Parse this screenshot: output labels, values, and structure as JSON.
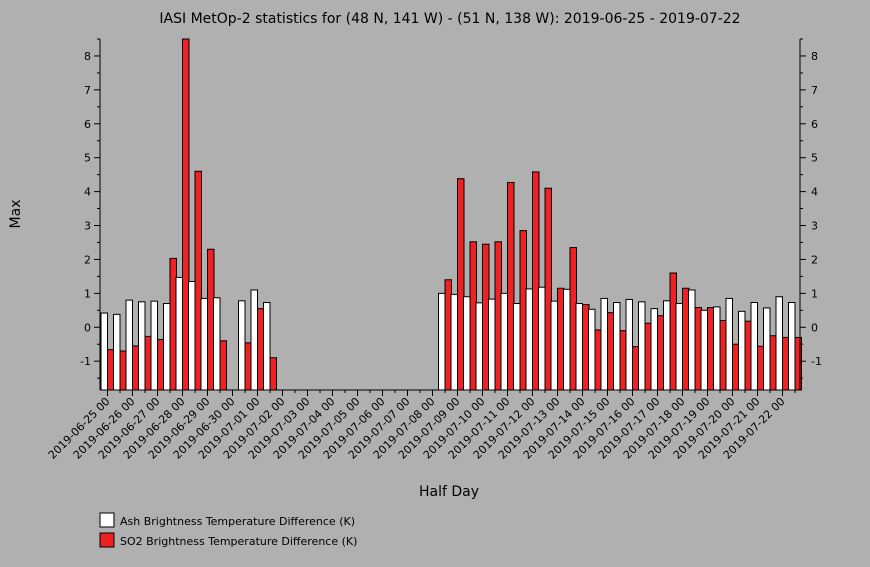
{
  "colors": {
    "background": "#b0b0b0",
    "ash_bar": "#ffffff",
    "so2_bar": "#ee2222",
    "axis": "#000000"
  },
  "chart_data": {
    "type": "bar",
    "title": "IASI MetOp-2 statistics for (48 N, 141 W) - (51 N, 138 W): 2019-06-25 - 2019-07-22",
    "xlabel": "Half Day",
    "ylabel": "Max",
    "ylim": [
      -1.85,
      8.5
    ],
    "yticks": [
      -1,
      0,
      1,
      2,
      3,
      4,
      5,
      6,
      7,
      8
    ],
    "grid": false,
    "legend_position": "bottom-left",
    "categories": [
      "2019-06-25 00",
      "2019-06-25 12",
      "2019-06-26 00",
      "2019-06-26 12",
      "2019-06-27 00",
      "2019-06-27 12",
      "2019-06-28 00",
      "2019-06-28 12",
      "2019-06-29 00",
      "2019-06-29 12",
      "2019-06-30 00",
      "2019-06-30 12",
      "2019-07-01 00",
      "2019-07-01 12",
      "2019-07-02 00",
      "2019-07-02 12",
      "2019-07-03 00",
      "2019-07-03 12",
      "2019-07-04 00",
      "2019-07-04 12",
      "2019-07-05 00",
      "2019-07-05 12",
      "2019-07-06 00",
      "2019-07-06 12",
      "2019-07-07 00",
      "2019-07-07 12",
      "2019-07-08 00",
      "2019-07-08 12",
      "2019-07-09 00",
      "2019-07-09 12",
      "2019-07-10 00",
      "2019-07-10 12",
      "2019-07-11 00",
      "2019-07-11 12",
      "2019-07-12 00",
      "2019-07-12 12",
      "2019-07-13 00",
      "2019-07-13 12",
      "2019-07-14 00",
      "2019-07-14 12",
      "2019-07-15 00",
      "2019-07-15 12",
      "2019-07-16 00",
      "2019-07-16 12",
      "2019-07-17 00",
      "2019-07-17 12",
      "2019-07-18 00",
      "2019-07-18 12",
      "2019-07-19 00",
      "2019-07-19 12",
      "2019-07-20 00",
      "2019-07-20 12",
      "2019-07-21 00",
      "2019-07-21 12",
      "2019-07-22 00",
      "2019-07-22 12"
    ],
    "tick_labels": [
      "2019-06-25 00",
      "2019-06-26 00",
      "2019-06-27 00",
      "2019-06-28 00",
      "2019-06-29 00",
      "2019-06-30 00",
      "2019-07-01 00",
      "2019-07-02 00",
      "2019-07-03 00",
      "2019-07-04 00",
      "2019-07-05 00",
      "2019-07-06 00",
      "2019-07-07 00",
      "2019-07-08 00",
      "2019-07-09 00",
      "2019-07-10 00",
      "2019-07-11 00",
      "2019-07-12 00",
      "2019-07-13 00",
      "2019-07-14 00",
      "2019-07-15 00",
      "2019-07-16 00",
      "2019-07-17 00",
      "2019-07-18 00",
      "2019-07-19 00",
      "2019-07-20 00",
      "2019-07-21 00",
      "2019-07-22 00"
    ],
    "series": [
      {
        "name": "Ash Brightness Temperature Difference (K)",
        "values": [
          0.42,
          0.38,
          0.8,
          0.75,
          0.77,
          0.7,
          1.47,
          1.35,
          0.85,
          0.87,
          null,
          0.78,
          1.1,
          0.73,
          null,
          null,
          null,
          null,
          null,
          null,
          null,
          null,
          null,
          null,
          null,
          null,
          null,
          1.0,
          0.97,
          0.9,
          0.72,
          0.83,
          1.0,
          0.7,
          1.13,
          1.18,
          0.77,
          1.12,
          0.7,
          0.53,
          0.85,
          0.73,
          0.82,
          0.75,
          0.55,
          0.78,
          0.7,
          1.1,
          0.5,
          0.6,
          0.85,
          0.47,
          0.73,
          0.57,
          0.9,
          0.73
        ]
      },
      {
        "name": "SO2 Brightness Temperature Difference (K)",
        "values": [
          -0.66,
          -0.7,
          -0.55,
          -0.27,
          -0.36,
          2.03,
          8.5,
          4.6,
          2.3,
          -0.4,
          null,
          -0.46,
          0.55,
          -0.9,
          null,
          null,
          null,
          null,
          null,
          null,
          null,
          null,
          null,
          null,
          null,
          null,
          null,
          1.4,
          4.38,
          2.52,
          2.45,
          2.52,
          4.27,
          2.85,
          4.58,
          4.1,
          1.15,
          2.35,
          0.67,
          -0.08,
          0.43,
          -0.1,
          -0.57,
          0.12,
          0.34,
          1.6,
          1.15,
          0.58,
          0.58,
          0.2,
          -0.5,
          0.18,
          -0.56,
          -0.25,
          -0.3,
          -0.3
        ]
      }
    ]
  }
}
